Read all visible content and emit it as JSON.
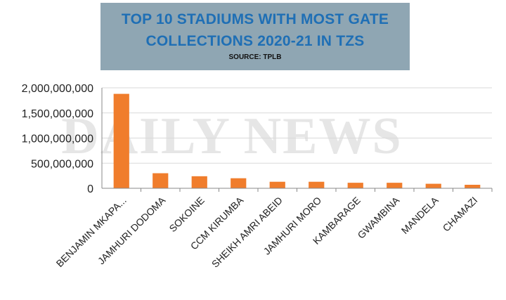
{
  "header": {
    "title_line1": "TOP 10 STADIUMS WITH MOST GATE",
    "title_line2": "COLLECTIONS 2020-21 IN TZS",
    "source": "SOURCE: TPLB",
    "watermark": "DAILY NEWS"
  },
  "colors": {
    "bar": "#f07d2c",
    "title_bg": "#8fa6b3",
    "title_text": "#1f6fb5",
    "grid": "#d9d9d9",
    "watermark": "#e6e6e6"
  },
  "chart_data": {
    "type": "bar",
    "categories": [
      "BENJAMIN MKAPA...",
      "JAMHURI DODOMA",
      "SOKOINE",
      "CCM KIRUMBA",
      "SHEIKH AMRI ABEID",
      "JAMHURI MORO",
      "KAMBARAGE",
      "GWAMBINA",
      "MANDELA",
      "CHAMAZI"
    ],
    "values": [
      1880000000,
      300000000,
      240000000,
      200000000,
      130000000,
      130000000,
      110000000,
      110000000,
      90000000,
      70000000
    ],
    "ylim": [
      0,
      2000000000
    ],
    "yticks": [
      0,
      500000000,
      1000000000,
      1500000000,
      2000000000
    ],
    "ytick_labels": [
      "0",
      "500,000,000",
      "1,000,000,000",
      "1,500,000,000",
      "2,000,000,000"
    ],
    "grid": true,
    "title": "TOP 10 STADIUMS WITH MOST GATE COLLECTIONS 2020-21 IN TZS"
  }
}
